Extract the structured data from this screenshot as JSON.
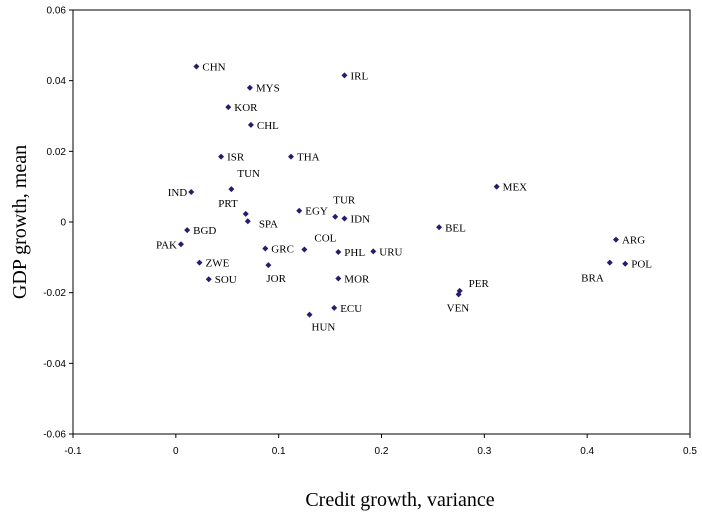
{
  "chart_data": {
    "type": "scatter",
    "xlabel": "Credit growth, variance",
    "ylabel": "GDP growth, mean",
    "xlim": [
      -0.1,
      0.5
    ],
    "ylim": [
      -0.06,
      0.06
    ],
    "x_ticks": [
      "-0.1",
      "0",
      "0.1",
      "0.2",
      "0.3",
      "0.4",
      "0.5"
    ],
    "y_ticks": [
      "0.06",
      "0.04",
      "0.02",
      "0",
      "-0.02",
      "-0.04",
      "-0.06"
    ],
    "grid": false,
    "marker_color": "#2a1a6e",
    "points": [
      {
        "label": "CHN",
        "x": 0.02,
        "y": 0.044
      },
      {
        "label": "IRL",
        "x": 0.164,
        "y": 0.0415
      },
      {
        "label": "MYS",
        "x": 0.072,
        "y": 0.038
      },
      {
        "label": "KOR",
        "x": 0.051,
        "y": 0.0325
      },
      {
        "label": "CHL",
        "x": 0.073,
        "y": 0.0275
      },
      {
        "label": "ISR",
        "x": 0.044,
        "y": 0.0185
      },
      {
        "label": "THA",
        "x": 0.112,
        "y": 0.0185
      },
      {
        "label": "TUN",
        "x": 0.054,
        "y": 0.0093
      },
      {
        "label": "IND",
        "x": 0.015,
        "y": 0.0085
      },
      {
        "label": "MEX",
        "x": 0.312,
        "y": 0.01
      },
      {
        "label": "TUR",
        "x": 0.155,
        "y": 0.0015
      },
      {
        "label": "EGY",
        "x": 0.12,
        "y": 0.0032
      },
      {
        "label": "PRT",
        "x": 0.068,
        "y": 0.0023
      },
      {
        "label": "IDN",
        "x": 0.164,
        "y": 0.001
      },
      {
        "label": "SPA",
        "x": 0.07,
        "y": 0.0002
      },
      {
        "label": "BEL",
        "x": 0.256,
        "y": -0.0015
      },
      {
        "label": "BGD",
        "x": 0.011,
        "y": -0.0023
      },
      {
        "label": "PAK",
        "x": 0.005,
        "y": -0.0063
      },
      {
        "label": "ARG",
        "x": 0.428,
        "y": -0.005
      },
      {
        "label": "GRC",
        "x": 0.087,
        "y": -0.0075
      },
      {
        "label": "COL",
        "x": 0.125,
        "y": -0.0078
      },
      {
        "label": "PHL",
        "x": 0.158,
        "y": -0.0085
      },
      {
        "label": "URU",
        "x": 0.192,
        "y": -0.0083
      },
      {
        "label": "ZWE",
        "x": 0.023,
        "y": -0.0115
      },
      {
        "label": "JOR",
        "x": 0.09,
        "y": -0.0122
      },
      {
        "label": "BRA",
        "x": 0.422,
        "y": -0.0115
      },
      {
        "label": "POL",
        "x": 0.437,
        "y": -0.0118
      },
      {
        "label": "SOU",
        "x": 0.032,
        "y": -0.0162
      },
      {
        "label": "MOR",
        "x": 0.158,
        "y": -0.016
      },
      {
        "label": "PER",
        "x": 0.276,
        "y": -0.0195
      },
      {
        "label": "VEN",
        "x": 0.275,
        "y": -0.0205
      },
      {
        "label": "ECU",
        "x": 0.154,
        "y": -0.0243
      },
      {
        "label": "HUN",
        "x": 0.13,
        "y": -0.0262
      }
    ]
  }
}
